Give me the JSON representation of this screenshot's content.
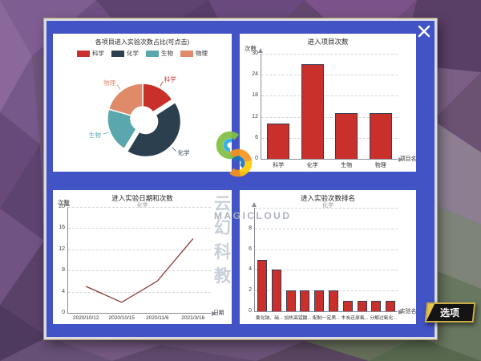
{
  "app": {
    "options_button_label": "选项"
  },
  "watermark": {
    "brand": "云幻科教",
    "brand_en": "MAGICLOUD"
  },
  "colors": {
    "window_blue": "#4254c5",
    "bar_red": "#c9302c",
    "line_red": "#8b3a35",
    "button_gold": "#c9ad4a",
    "background_purple": "#6d5478"
  },
  "chart_data": [
    {
      "type": "pie",
      "variant": "donut",
      "title": "各项目进入实验次数占比(可点击)",
      "legend": [
        "科学",
        "化学",
        "生物",
        "物理"
      ],
      "labels": [
        "科学",
        "化学",
        "生物",
        "物理"
      ],
      "values": [
        10,
        27,
        13,
        13
      ],
      "colors": [
        "#c9302c",
        "#2b3f4e",
        "#5aa7ad",
        "#df8a68"
      ],
      "exploded": "化学",
      "legend_position": "top"
    },
    {
      "type": "bar",
      "title": "进入项目次数",
      "ylabel": "次数",
      "xlabel": "项目名",
      "categories": [
        "科学",
        "化学",
        "生物",
        "物理"
      ],
      "values": [
        10,
        27,
        13,
        13
      ],
      "yticks": [
        0,
        6,
        12,
        18,
        24,
        30
      ],
      "ylim": [
        0,
        30
      ],
      "grid": "dashed-horizontal",
      "bar_color": "#c9302c"
    },
    {
      "type": "line",
      "title": "进入实验日期和次数",
      "subtitle": "化学",
      "ylabel": "次数",
      "xlabel": "日期",
      "categories": [
        "2020/10/12",
        "2020/10/15",
        "2020/11/6",
        "2021/3/16"
      ],
      "values": [
        5,
        2,
        6,
        14
      ],
      "yticks": [
        0,
        4,
        8,
        12,
        16,
        20
      ],
      "ylim": [
        0,
        20
      ],
      "grid": "dashed-horizontal",
      "line_color": "#8b3a35"
    },
    {
      "type": "bar",
      "title": "进入实验次数排名",
      "subtitle": "化学",
      "xlabel": "实验名",
      "values": [
        5,
        4,
        2,
        2,
        2,
        2,
        1,
        1,
        1,
        1
      ],
      "x_tick_labels": [
        "氯化钠、硝...",
        "加热高锰酸...",
        "配制一定质...",
        "木炭还原氧...",
        "分解过氧化..."
      ],
      "yticks": [
        0,
        2,
        4,
        6,
        8
      ],
      "grid_extra": [
        10
      ],
      "ylim": [
        0,
        10
      ],
      "grid": "dashed-horizontal",
      "bar_color": "#c9302c"
    }
  ]
}
